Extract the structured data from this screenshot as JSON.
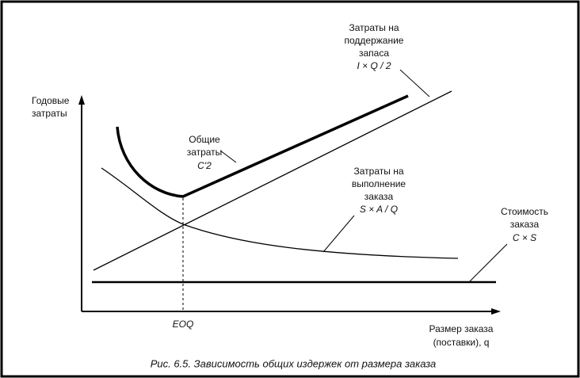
{
  "y_axis_label": [
    "Годовые",
    "затраты"
  ],
  "x_axis_label": [
    "Размер заказа",
    "(поставки), q"
  ],
  "x_marker": "EOQ",
  "curves": {
    "total": [
      "Общие",
      "затраты",
      "C'2"
    ],
    "holding": [
      "Затраты на",
      "поддержание",
      "запаса",
      "I × Q / 2"
    ],
    "ordering": [
      "Затраты на",
      "выполнение",
      "заказа",
      "S × A / Q"
    ],
    "order_cost": [
      "Стоимость",
      "заказа",
      "C × S"
    ]
  },
  "caption": "Рис. 6.5. Зависимость общих издержек от размера заказа"
}
